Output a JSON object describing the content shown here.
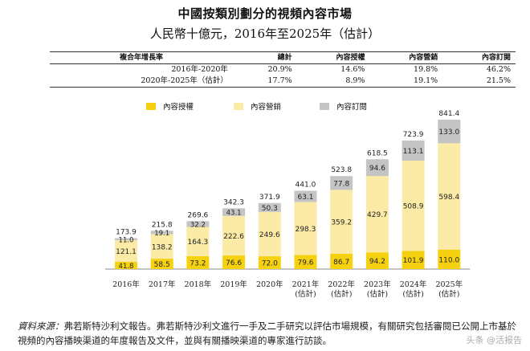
{
  "title": "中國按類別劃分的視頻內容市場",
  "subtitle": "人民幣十億元，2016年至2025年（估計）",
  "cagr_table": {
    "headers": [
      "複合年增長率",
      "總計",
      "內容授權",
      "內容營銷",
      "內容訂閱"
    ],
    "rows": [
      [
        "2016年-2020年",
        "20.9%",
        "14.6%",
        "19.8%",
        "46.2%"
      ],
      [
        "2020年-2025年（估計）",
        "17.7%",
        "8.9%",
        "19.1%",
        "21.5%"
      ]
    ]
  },
  "legend": [
    {
      "name": "內容授權",
      "color": "#f5d10f"
    },
    {
      "name": "內容營銷",
      "color": "#fbeba6"
    },
    {
      "name": "內容訂閱",
      "color": "#c4c4c4"
    }
  ],
  "chart_data": {
    "type": "bar",
    "stacked": true,
    "categories": [
      [
        "2016年"
      ],
      [
        "2017年"
      ],
      [
        "2018年"
      ],
      [
        "2019年"
      ],
      [
        "2020年"
      ],
      [
        "2021年",
        "(估計)"
      ],
      [
        "2022年",
        "(估計)"
      ],
      [
        "2023年",
        "(估計)"
      ],
      [
        "2024年",
        "(估計)"
      ],
      [
        "2025年",
        "(估計)"
      ]
    ],
    "series": [
      {
        "name": "內容授權",
        "color": "#f5d10f",
        "values": [
          41.8,
          58.5,
          73.2,
          76.6,
          72.0,
          79.6,
          86.7,
          94.2,
          101.9,
          110.0
        ]
      },
      {
        "name": "內容營銷",
        "color": "#fbeba6",
        "values": [
          121.1,
          138.2,
          164.3,
          222.6,
          249.6,
          298.3,
          359.2,
          429.7,
          508.9,
          598.4
        ]
      },
      {
        "name": "內容訂閱",
        "color": "#c4c4c4",
        "values": [
          11.0,
          19.1,
          32.2,
          43.1,
          50.3,
          63.1,
          77.8,
          94.6,
          113.1,
          133.0
        ]
      }
    ],
    "totals": [
      173.9,
      215.8,
      269.6,
      342.3,
      371.9,
      441.0,
      523.8,
      618.5,
      723.9,
      841.4
    ],
    "value_labels": [
      [
        "41.8",
        "58.5",
        "73.2",
        "76.6",
        "72.0",
        "79.6",
        "86.7",
        "94.2",
        "101.9",
        "110.0"
      ],
      [
        "121.1",
        "138.2",
        "164.3",
        "222.6",
        "249.6",
        "298.3",
        "359.2",
        "429.7",
        "508.9",
        "598.4"
      ],
      [
        "11.0",
        "19.1",
        "32.2",
        "43.1",
        "50.3",
        "63.1",
        "77.8",
        "94.6",
        "113.1",
        "133.0"
      ]
    ],
    "total_labels": [
      "173.9",
      "215.8",
      "269.6",
      "342.3",
      "371.9",
      "441.0",
      "523.8",
      "618.5",
      "723.9",
      "841.4"
    ],
    "ylim": [
      0,
      841.4
    ],
    "grid": false
  },
  "source": {
    "lead": "資料來源：",
    "text": "弗若斯特沙利文報告。弗若斯特沙利文進行一手及二手研究以評估市場規模，有關研究包括審閱已公開上市基於視頻的內容播映渠道的年度報告及文件，並與有關播映渠道的專家進行訪談。"
  },
  "watermark": "头条 @活报告"
}
